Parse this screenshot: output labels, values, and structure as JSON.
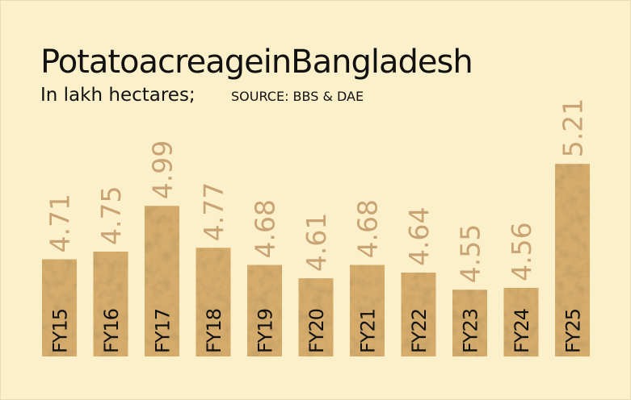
{
  "chart_data": {
    "type": "bar",
    "title": "PotatoacreageinBangladesh",
    "subtitle": "In lakh hectares;",
    "source": "SOURCE: BBS & DAE",
    "categories": [
      "FY15",
      "FY16",
      "FY17",
      "FY18",
      "FY19",
      "FY20",
      "FY21",
      "FY22",
      "FY23",
      "FY24",
      "FY25"
    ],
    "values": [
      4.71,
      4.75,
      4.99,
      4.77,
      4.68,
      4.61,
      4.68,
      4.64,
      4.55,
      4.56,
      5.21
    ],
    "color": "#d6ac6c",
    "label_color": "#c9a374",
    "ylim": [
      4.2,
      5.3
    ]
  }
}
